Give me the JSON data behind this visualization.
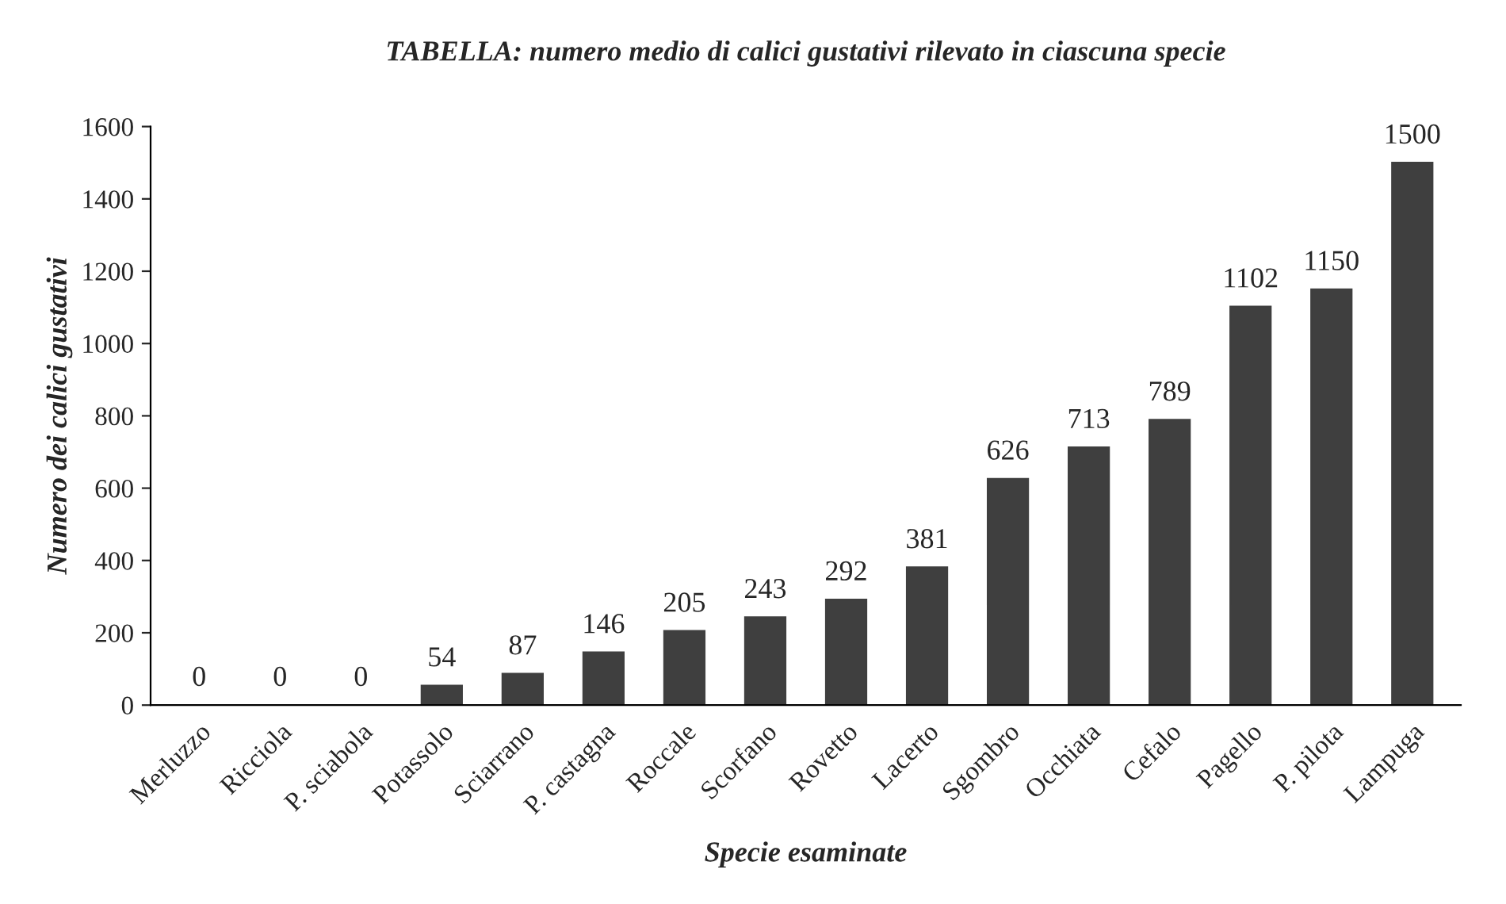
{
  "chart_data": {
    "type": "bar",
    "title": "TABELLA: numero medio di calici gustativi rilevato in ciascuna specie",
    "xlabel": "Specie esaminate",
    "ylabel": "Numero dei calici gustativi",
    "categories": [
      "Merluzzo",
      "Ricciola",
      "P. sciabola",
      "Potassolo",
      "Sciarrano",
      "P. castagna",
      "Roccale",
      "Scorfano",
      "Rovetto",
      "Lacerto",
      "Sgombro",
      "Occhiata",
      "Cefalo",
      "Pagello",
      "P. pilota",
      "Lampuga"
    ],
    "values": [
      0,
      0,
      0,
      54,
      87,
      146,
      205,
      243,
      292,
      381,
      626,
      713,
      789,
      1102,
      1150,
      1500
    ],
    "color": "#3f3f3f",
    "data_labels": true,
    "grid": false,
    "legend": false,
    "ylim": [
      0,
      1600
    ],
    "yticks": [
      0,
      200,
      400,
      600,
      800,
      1000,
      1200,
      1400,
      1600
    ]
  }
}
